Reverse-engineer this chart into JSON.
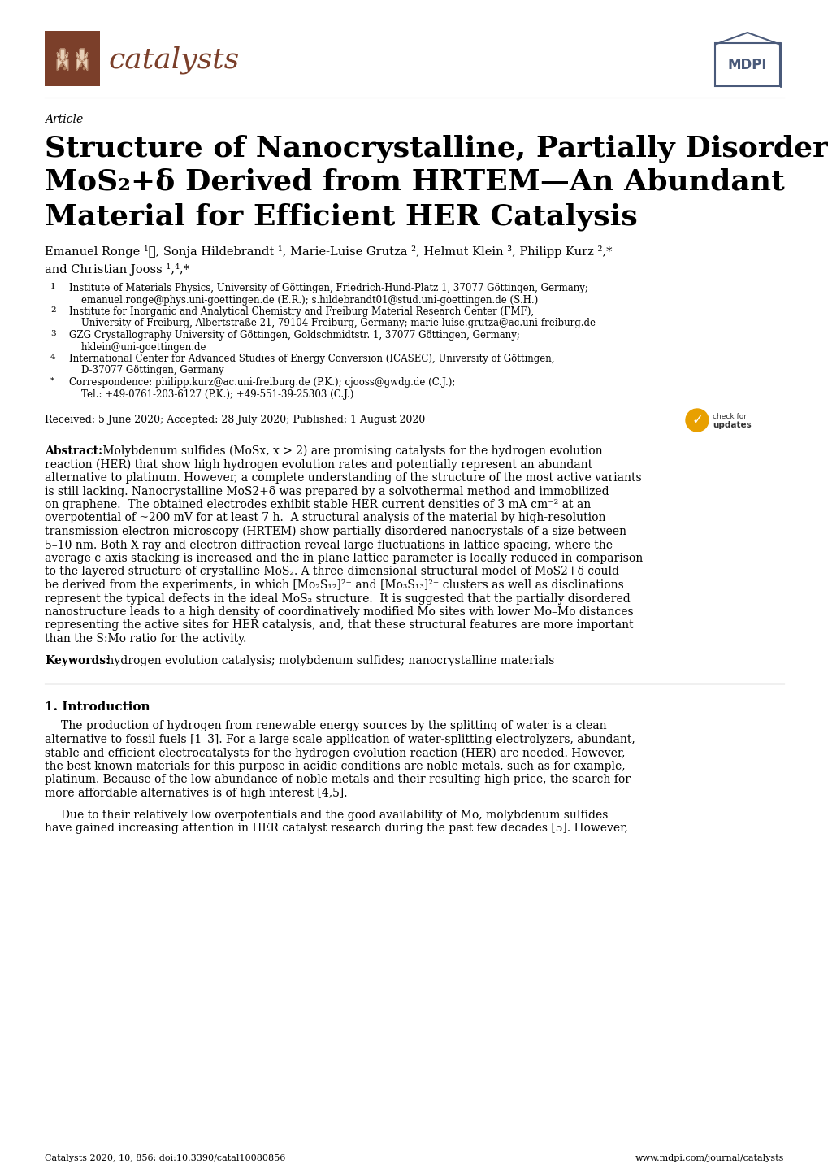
{
  "bg_color": "#ffffff",
  "header_logo_color": "#7B3F2A",
  "mdpi_color": "#4A5A7A",
  "article_label": "Article",
  "title_line1": "Structure of Nanocrystalline, Partially Disordered",
  "title_line2": "MoS₂+δ Derived from HRTEM—An Abundant",
  "title_line3": "Material for Efficient HER Catalysis",
  "author_line1": "Emanuel Ronge ¹ⓘ, Sonja Hildebrandt ¹, Marie-Luise Grutza ², Helmut Klein ³, Philipp Kurz ²,*",
  "author_line2": "and Christian Jooss ¹,⁴,*",
  "aff_lines": [
    [
      "1",
      "Institute of Materials Physics, University of Göttingen, Friedrich-Hund-Platz 1, 37077 Göttingen, Germany;"
    ],
    [
      "",
      "    emanuel.ronge@phys.uni-goettingen.de (E.R.); s.hildebrandt01@stud.uni-goettingen.de (S.H.)"
    ],
    [
      "2",
      "Institute for Inorganic and Analytical Chemistry and Freiburg Material Research Center (FMF),"
    ],
    [
      "",
      "    University of Freiburg, Albertstraße 21, 79104 Freiburg, Germany; marie-luise.grutza@ac.uni-freiburg.de"
    ],
    [
      "3",
      "GZG Crystallography University of Göttingen, Goldschmidtstr. 1, 37077 Göttingen, Germany;"
    ],
    [
      "",
      "    hklein@uni-goettingen.de"
    ],
    [
      "4",
      "International Center for Advanced Studies of Energy Conversion (ICASEC), University of Göttingen,"
    ],
    [
      "",
      "    D-37077 Göttingen, Germany"
    ],
    [
      "*",
      "Correspondence: philipp.kurz@ac.uni-freiburg.de (P.K.); cjooss@gwdg.de (C.J.);"
    ],
    [
      "",
      "    Tel.: +49-0761-203-6127 (P.K.); +49-551-39-25303 (C.J.)"
    ]
  ],
  "received": "Received: 5 June 2020; Accepted: 28 July 2020; Published: 1 August 2020",
  "abstract_lines": [
    "Abstract: Molybdenum sulfides (MoSx, x > 2) are promising catalysts for the hydrogen evolution",
    "reaction (HER) that show high hydrogen evolution rates and potentially represent an abundant",
    "alternative to platinum. However, a complete understanding of the structure of the most active variants",
    "is still lacking. Nanocrystalline MoS2+δ was prepared by a solvothermal method and immobilized",
    "on graphene.  The obtained electrodes exhibit stable HER current densities of 3 mA cm⁻² at an",
    "overpotential of ~200 mV for at least 7 h.  A structural analysis of the material by high-resolution",
    "transmission electron microscopy (HRTEM) show partially disordered nanocrystals of a size between",
    "5–10 nm. Both X-ray and electron diffraction reveal large fluctuations in lattice spacing, where the",
    "average c-axis stacking is increased and the in-plane lattice parameter is locally reduced in comparison",
    "to the layered structure of crystalline MoS₂. A three-dimensional structural model of MoS2+δ could",
    "be derived from the experiments, in which [Mo₂S₁₂]²⁻ and [Mo₃S₁₃]²⁻ clusters as well as disclinations",
    "represent the typical defects in the ideal MoS₂ structure.  It is suggested that the partially disordered",
    "nanostructure leads to a high density of coordinatively modified Mo sites with lower Mo–Mo distances",
    "representing the active sites for HER catalysis, and, that these structural features are more important",
    "than the S:Mo ratio for the activity."
  ],
  "keywords_line": "Keywords: hydrogen evolution catalysis; molybdenum sulfides; nanocrystalline materials",
  "intro_header": "1. Introduction",
  "intro_p1_lines": [
    "The production of hydrogen from renewable energy sources by the splitting of water is a clean",
    "alternative to fossil fuels [1–3]. For a large scale application of water-splitting electrolyzers, abundant,",
    "stable and efficient electrocatalysts for the hydrogen evolution reaction (HER) are needed. However,",
    "the best known materials for this purpose in acidic conditions are noble metals, such as for example,",
    "platinum. Because of the low abundance of noble metals and their resulting high price, the search for",
    "more affordable alternatives is of high interest [4,5]."
  ],
  "intro_p2_lines": [
    "Due to their relatively low overpotentials and the good availability of Mo, molybdenum sulfides",
    "have gained increasing attention in HER catalyst research during the past few decades [5]. However,"
  ],
  "footer_left": "Catalysts 2020, 10, 856; doi:10.3390/catal10080856",
  "footer_right": "www.mdpi.com/journal/catalysts"
}
